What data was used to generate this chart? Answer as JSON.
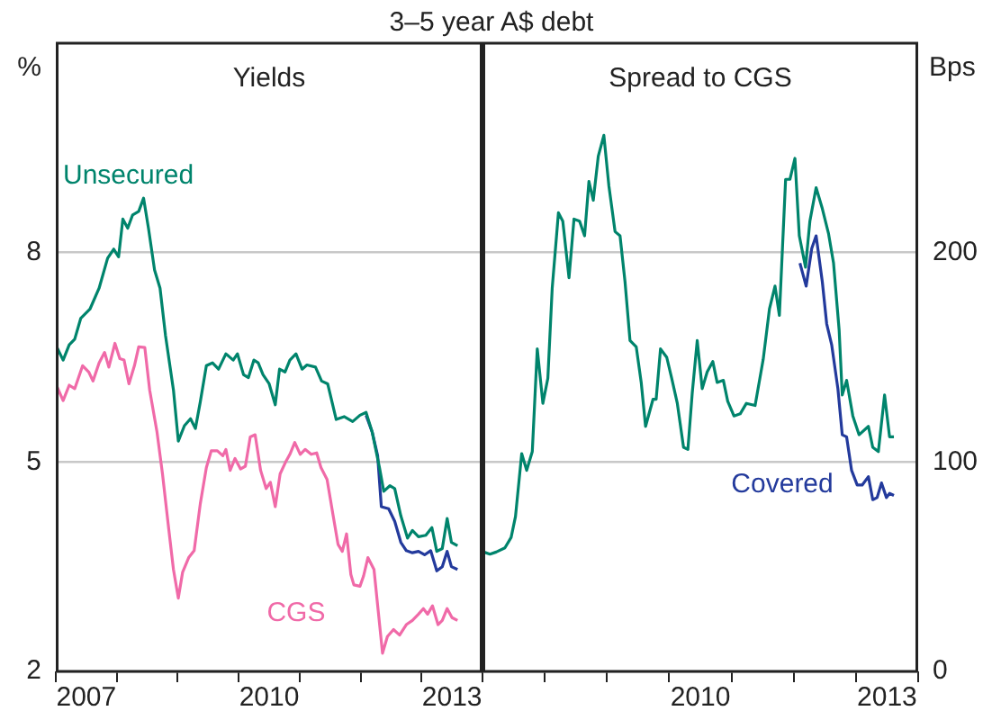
{
  "chart_data": [
    {
      "type": "line",
      "subtitle": "3–5 year A$ debt",
      "title": "Yields",
      "ylabel": "%",
      "xlim": [
        2007,
        2014
      ],
      "ylim": [
        2,
        11
      ],
      "yticks": [
        2,
        5,
        8
      ],
      "xticks": [
        {
          "value": 2007,
          "label": null
        },
        {
          "value": 2007.5,
          "label": "2007"
        },
        {
          "value": 2008,
          "label": null
        },
        {
          "value": 2009,
          "label": null
        },
        {
          "value": 2010,
          "label": null
        },
        {
          "value": 2010.5,
          "label": "2010"
        },
        {
          "value": 2011,
          "label": null
        },
        {
          "value": 2012,
          "label": null
        },
        {
          "value": 2013,
          "label": null
        },
        {
          "value": 2013.5,
          "label": "2013"
        },
        {
          "value": 2014,
          "label": null
        }
      ],
      "grid": "y",
      "legend": false,
      "marker": "none",
      "line_style": "solid",
      "series": [
        {
          "name": "Unsecured",
          "color": "#00846c",
          "x": [
            2007.02,
            2007.12,
            2007.22,
            2007.31,
            2007.41,
            2007.56,
            2007.71,
            2007.85,
            2007.95,
            2008.03,
            2008.1,
            2008.18,
            2008.26,
            2008.36,
            2008.44,
            2008.52,
            2008.62,
            2008.71,
            2008.8,
            2008.93,
            2009.01,
            2009.11,
            2009.21,
            2009.29,
            2009.37,
            2009.47,
            2009.57,
            2009.67,
            2009.79,
            2009.91,
            2009.98,
            2010.08,
            2010.16,
            2010.25,
            2010.32,
            2010.4,
            2010.5,
            2010.6,
            2010.67,
            2010.76,
            2010.84,
            2010.94,
            2011.04,
            2011.12,
            2011.26,
            2011.36,
            2011.46,
            2011.6,
            2011.73,
            2011.87,
            2011.99,
            2012.09,
            2012.19,
            2012.31,
            2012.38,
            2012.48,
            2012.56,
            2012.66,
            2012.77,
            2012.85,
            2012.95,
            2013.07,
            2013.17,
            2013.25,
            2013.34,
            2013.42,
            2013.49,
            2013.59
          ],
          "values": [
            6.64,
            6.46,
            6.68,
            6.76,
            7.06,
            7.19,
            7.49,
            7.92,
            8.05,
            7.94,
            8.48,
            8.35,
            8.54,
            8.59,
            8.78,
            8.35,
            7.75,
            7.49,
            6.81,
            6.03,
            5.3,
            5.52,
            5.62,
            5.48,
            5.86,
            6.38,
            6.42,
            6.33,
            6.55,
            6.46,
            6.55,
            6.25,
            6.21,
            6.46,
            6.42,
            6.25,
            6.12,
            5.82,
            6.33,
            6.29,
            6.46,
            6.55,
            6.33,
            6.39,
            6.36,
            6.16,
            6.12,
            5.61,
            5.65,
            5.58,
            5.67,
            5.71,
            5.43,
            4.92,
            4.58,
            4.66,
            4.62,
            4.23,
            3.91,
            4.02,
            3.93,
            3.95,
            4.06,
            3.72,
            3.76,
            4.19,
            3.85,
            3.8
          ]
        },
        {
          "color": "#233a9c",
          "x": [
            2012.09,
            2012.19,
            2012.28,
            2012.34,
            2012.46,
            2012.56,
            2012.66,
            2012.75,
            2012.85,
            2012.95,
            2013.05,
            2013.15,
            2013.25,
            2013.34,
            2013.42,
            2013.49,
            2013.59
          ],
          "values": [
            5.67,
            5.43,
            5.09,
            4.36,
            4.33,
            4.15,
            3.85,
            3.73,
            3.7,
            3.72,
            3.67,
            3.73,
            3.44,
            3.5,
            3.72,
            3.5,
            3.46
          ]
        },
        {
          "name": "CGS",
          "color": "#f06aa8",
          "x": [
            2007.02,
            2007.12,
            2007.22,
            2007.31,
            2007.44,
            2007.54,
            2007.61,
            2007.71,
            2007.8,
            2007.87,
            2007.97,
            2008.05,
            2008.12,
            2008.2,
            2008.29,
            2008.36,
            2008.46,
            2008.54,
            2008.66,
            2008.75,
            2008.85,
            2008.93,
            2009.01,
            2009.08,
            2009.18,
            2009.27,
            2009.37,
            2009.47,
            2009.55,
            2009.65,
            2009.74,
            2009.79,
            2009.86,
            2009.94,
            2010.03,
            2010.11,
            2010.19,
            2010.27,
            2010.36,
            2010.45,
            2010.52,
            2010.6,
            2010.68,
            2010.77,
            2010.84,
            2010.92,
            2011.01,
            2011.09,
            2011.19,
            2011.28,
            2011.35,
            2011.45,
            2011.55,
            2011.63,
            2011.7,
            2011.77,
            2011.84,
            2011.89,
            2011.99,
            2012.05,
            2012.12,
            2012.22,
            2012.29,
            2012.36,
            2012.44,
            2012.54,
            2012.64,
            2012.75,
            2012.85,
            2012.95,
            2013.03,
            2013.1,
            2013.18,
            2013.27,
            2013.34,
            2013.42,
            2013.5,
            2013.59
          ],
          "values": [
            6.08,
            5.88,
            6.1,
            6.05,
            6.38,
            6.29,
            6.16,
            6.42,
            6.57,
            6.36,
            6.7,
            6.48,
            6.46,
            6.12,
            6.38,
            6.65,
            6.64,
            6.03,
            5.43,
            4.83,
            4.06,
            3.46,
            3.05,
            3.42,
            3.63,
            3.73,
            4.4,
            4.92,
            5.16,
            5.16,
            5.09,
            5.18,
            4.88,
            5.05,
            4.9,
            4.94,
            5.36,
            5.39,
            4.88,
            4.62,
            4.71,
            4.36,
            4.83,
            5.0,
            5.11,
            5.28,
            5.11,
            5.18,
            5.11,
            5.13,
            4.92,
            4.75,
            4.23,
            3.82,
            3.72,
            3.97,
            3.39,
            3.24,
            3.22,
            3.37,
            3.63,
            3.46,
            2.86,
            2.26,
            2.5,
            2.6,
            2.52,
            2.67,
            2.73,
            2.82,
            2.9,
            2.82,
            2.94,
            2.67,
            2.73,
            2.9,
            2.77,
            2.73
          ]
        }
      ]
    },
    {
      "type": "line",
      "title": "Spread to CGS",
      "ylabel": "Bps",
      "xlim": [
        2007,
        2014
      ],
      "ylim": [
        0,
        300
      ],
      "yticks": [
        0,
        100,
        200
      ],
      "xticks": [
        {
          "value": 2007,
          "label": null
        },
        {
          "value": 2008,
          "label": null
        },
        {
          "value": 2009,
          "label": null
        },
        {
          "value": 2010,
          "label": null
        },
        {
          "value": 2010.5,
          "label": "2010"
        },
        {
          "value": 2011,
          "label": null
        },
        {
          "value": 2012,
          "label": null
        },
        {
          "value": 2013,
          "label": null
        },
        {
          "value": 2013.5,
          "label": "2013"
        },
        {
          "value": 2014,
          "label": null
        }
      ],
      "grid": "y",
      "legend": false,
      "marker": "none",
      "line_style": "solid",
      "series": [
        {
          "color": "#00846c",
          "x": [
            2007.02,
            2007.12,
            2007.22,
            2007.36,
            2007.46,
            2007.53,
            2007.63,
            2007.71,
            2007.8,
            2007.88,
            2007.97,
            2008.05,
            2008.12,
            2008.22,
            2008.29,
            2008.39,
            2008.47,
            2008.56,
            2008.64,
            2008.71,
            2008.78,
            2008.86,
            2008.95,
            2009.03,
            2009.13,
            2009.21,
            2009.29,
            2009.37,
            2009.47,
            2009.55,
            2009.62,
            2009.74,
            2009.79,
            2009.86,
            2009.96,
            2010.04,
            2010.13,
            2010.23,
            2010.3,
            2010.37,
            2010.45,
            2010.53,
            2010.61,
            2010.7,
            2010.77,
            2010.87,
            2010.94,
            2011.04,
            2011.14,
            2011.24,
            2011.38,
            2011.51,
            2011.61,
            2011.7,
            2011.77,
            2011.87,
            2011.94,
            2012.02,
            2012.09,
            2012.19,
            2012.26,
            2012.36,
            2012.46,
            2012.56,
            2012.64,
            2012.73,
            2012.78,
            2012.85,
            2012.95,
            2013.05,
            2013.2,
            2013.27,
            2013.36,
            2013.46,
            2013.54,
            2013.61
          ],
          "values": [
            57,
            56,
            57,
            59,
            64,
            74,
            104,
            96,
            105,
            154,
            128,
            140,
            183,
            219,
            215,
            188,
            216,
            215,
            208,
            234,
            225,
            246,
            256,
            232,
            210,
            208,
            186,
            158,
            155,
            138,
            117,
            130,
            130,
            154,
            150,
            140,
            128,
            107,
            106,
            133,
            158,
            135,
            143,
            148,
            138,
            139,
            129,
            122,
            123,
            128,
            127,
            149,
            173,
            184,
            170,
            235,
            235,
            245,
            208,
            193,
            215,
            231,
            221,
            209,
            195,
            163,
            132,
            139,
            122,
            113,
            117,
            107,
            105,
            132,
            112,
            112
          ]
        },
        {
          "name": "Covered",
          "color": "#233a9c",
          "x": [
            2012.1,
            2012.2,
            2012.29,
            2012.36,
            2012.46,
            2012.53,
            2012.61,
            2012.71,
            2012.78,
            2012.85,
            2012.93,
            2013.02,
            2013.1,
            2013.2,
            2013.27,
            2013.34,
            2013.41,
            2013.49,
            2013.54,
            2013.61
          ],
          "values": [
            195,
            184,
            202,
            208,
            186,
            166,
            156,
            135,
            113,
            112,
            96,
            89,
            89,
            93,
            82,
            83,
            90,
            83,
            85,
            84
          ]
        }
      ]
    }
  ]
}
